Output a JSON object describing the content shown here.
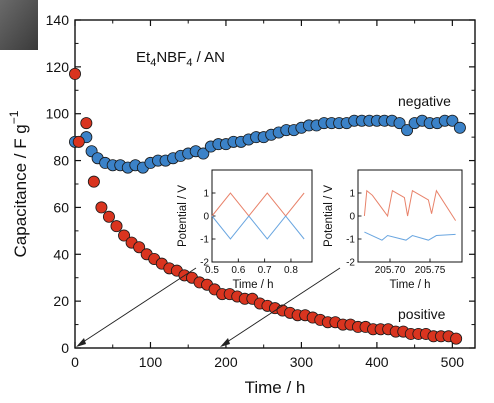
{
  "chart_data": [
    {
      "type": "scatter",
      "annotation_main": "Et",
      "annotation_sub1": "4",
      "annotation_mid": "NBF",
      "annotation_sub2": "4",
      "annotation_end": " / AN",
      "xlabel": "Time / h",
      "ylabel": "Capacitance / F g",
      "ylabel_sup": "−1",
      "xlim": [
        0,
        530
      ],
      "ylim": [
        0,
        140
      ],
      "xticks": [
        "0",
        "100",
        "200",
        "300",
        "400",
        "500"
      ],
      "yticks": [
        "0",
        "20",
        "40",
        "60",
        "80",
        "100",
        "120",
        "140"
      ],
      "grid": false,
      "series": [
        {
          "name": "negative",
          "color": "#3b82c8",
          "x": [
            0,
            15,
            22,
            30,
            40,
            50,
            60,
            70,
            80,
            90,
            100,
            110,
            120,
            130,
            140,
            150,
            160,
            170,
            180,
            190,
            200,
            210,
            220,
            230,
            240,
            250,
            260,
            270,
            280,
            290,
            300,
            310,
            320,
            330,
            340,
            350,
            360,
            370,
            380,
            390,
            400,
            410,
            420,
            430,
            440,
            450,
            460,
            470,
            480,
            490,
            500,
            510
          ],
          "y": [
            88,
            90,
            84,
            81,
            79,
            78,
            78,
            77,
            78,
            77,
            79,
            80,
            80,
            81,
            82,
            83,
            84,
            83,
            86,
            87,
            87,
            88,
            88,
            89,
            90,
            90,
            91,
            92,
            93,
            93,
            94,
            95,
            95,
            96,
            96,
            96,
            96,
            97,
            97,
            97,
            97,
            97,
            97,
            96,
            93,
            96,
            97,
            96,
            96,
            97,
            97,
            94
          ]
        },
        {
          "name": "positive",
          "color": "#d9341f",
          "x": [
            0,
            5,
            15,
            25,
            35,
            45,
            55,
            65,
            75,
            85,
            95,
            105,
            115,
            125,
            135,
            145,
            155,
            165,
            175,
            185,
            195,
            205,
            215,
            225,
            235,
            245,
            255,
            265,
            275,
            285,
            295,
            305,
            315,
            325,
            335,
            345,
            355,
            365,
            375,
            385,
            395,
            405,
            415,
            425,
            435,
            445,
            455,
            465,
            475,
            485,
            495,
            505
          ],
          "y": [
            117,
            88,
            96,
            71,
            60,
            56,
            52,
            48,
            45,
            43,
            40,
            38,
            36,
            34,
            33,
            31,
            30,
            28,
            27,
            25,
            23,
            23,
            22,
            21,
            21,
            19,
            18,
            17,
            16,
            15,
            14,
            14,
            13,
            12,
            11,
            11,
            10,
            10,
            9,
            9,
            8,
            8,
            8,
            7,
            7,
            6,
            6,
            6,
            5,
            5,
            5,
            4
          ]
        }
      ]
    },
    {
      "type": "line",
      "xlabel": "Time / h",
      "ylabel": "Potential / V",
      "xlim": [
        0.5,
        0.88
      ],
      "ylim": [
        -2,
        2
      ],
      "xticks": [
        "0.5",
        "0.6",
        "0.7",
        "0.8"
      ],
      "yticks": [
        "-2",
        "-1",
        "0",
        "1"
      ],
      "series": [
        {
          "color": "#e8826a",
          "x": [
            0.5,
            0.57,
            0.64,
            0.71,
            0.78,
            0.85
          ],
          "y": [
            0,
            1,
            0,
            1,
            0,
            1
          ]
        },
        {
          "color": "#6aa6e0",
          "x": [
            0.5,
            0.57,
            0.64,
            0.71,
            0.78,
            0.85
          ],
          "y": [
            0,
            -1,
            0,
            -1,
            0,
            -1
          ]
        }
      ]
    },
    {
      "type": "line",
      "xlabel": "Time / h",
      "ylabel": "Potential / V",
      "xlim": [
        205.66,
        205.79
      ],
      "ylim": [
        -2,
        2
      ],
      "xticks": [
        "205.70",
        "205.75"
      ],
      "yticks": [
        "-2",
        "-1",
        "0",
        "1"
      ],
      "series": [
        {
          "color": "#e8826a",
          "x": [
            205.668,
            205.671,
            205.678,
            205.697,
            205.698,
            205.703,
            205.718,
            205.722,
            205.728,
            205.748,
            205.752,
            205.758,
            205.782
          ],
          "y": [
            0,
            1.1,
            0.9,
            0,
            0.2,
            1.1,
            0.8,
            0,
            1.1,
            0.7,
            0.1,
            1.1,
            -0.2
          ]
        },
        {
          "color": "#6aa6e0",
          "x": [
            205.668,
            205.69,
            205.697,
            205.72,
            205.728,
            205.748,
            205.758,
            205.782
          ],
          "y": [
            -0.7,
            -1.05,
            -0.85,
            -1.05,
            -0.85,
            -1.05,
            -0.85,
            -0.8
          ]
        }
      ]
    }
  ]
}
